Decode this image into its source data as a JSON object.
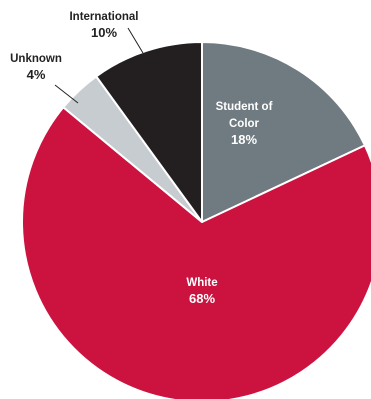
{
  "chart_data": {
    "type": "pie",
    "title": "",
    "slices": [
      {
        "name_lines": [
          "Student of",
          "Color"
        ],
        "label": "Student of Color",
        "value": 18,
        "value_label": "18%",
        "color": "#6f7b80"
      },
      {
        "name_lines": [
          "White"
        ],
        "label": "White",
        "value": 68,
        "value_label": "68%",
        "color": "#cc1340"
      },
      {
        "name_lines": [
          "Unknown"
        ],
        "label": "Unknown",
        "value": 4,
        "value_label": "4%",
        "color": "#c7ccd0"
      },
      {
        "name_lines": [
          "International"
        ],
        "label": "International",
        "value": 10,
        "value_label": "10%",
        "color": "#231f20"
      }
    ],
    "start_angle_deg": 0,
    "direction": "clockwise",
    "legend": "none",
    "inside_label_color": "#ffffff",
    "outside_label_color": "#222222"
  }
}
